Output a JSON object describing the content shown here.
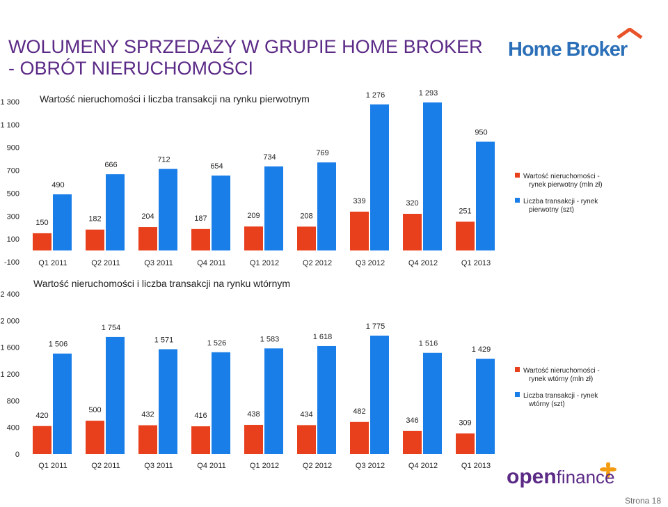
{
  "page": {
    "title_line1": "WOLUMENY SPRZEDAŻY W GRUPIE HOME BROKER",
    "title_line2": "- OBRÓT NIERUCHOMOŚCI",
    "page_number": "Strona 18"
  },
  "logos": {
    "home_broker": "Home Broker",
    "open_finance_open": "open",
    "open_finance_finance": "finance"
  },
  "colors": {
    "title": "#5b2a86",
    "series_red": "#e8401c",
    "series_blue": "#1a7ee8",
    "home_broker_blue": "#2a6fb7",
    "home_broker_orange": "#e8532a",
    "open_finance_purple": "#5b2a86",
    "open_finance_orange": "#f39c12"
  },
  "chart_data": [
    {
      "type": "bar",
      "title": "Wartość nieruchomości i liczba transakcji na rynku pierwotnym",
      "categories": [
        "Q1 2011",
        "Q2 2011",
        "Q3 2011",
        "Q4 2011",
        "Q1 2012",
        "Q2 2012",
        "Q3 2012",
        "Q4 2012",
        "Q1 2013"
      ],
      "y_ticks": [
        "1 300",
        "1 100",
        "900",
        "700",
        "500",
        "300",
        "100",
        "-100"
      ],
      "ylim": [
        -100,
        1300
      ],
      "grid": false,
      "legend_position": "right",
      "series": [
        {
          "name": "Wartość nieruchomości - rynek pierwotny (mln zł)",
          "color": "#e8401c",
          "values": [
            150,
            182,
            204,
            187,
            209,
            208,
            339,
            320,
            251
          ],
          "labels": [
            "150",
            "182",
            "204",
            "187",
            "209",
            "208",
            "339",
            "320",
            "251"
          ]
        },
        {
          "name": "Liczba transakcji - rynek pierwotny (szt)",
          "color": "#1a7ee8",
          "values": [
            490,
            666,
            712,
            654,
            734,
            769,
            1276,
            1293,
            950
          ],
          "labels": [
            "490",
            "666",
            "712",
            "654",
            "734",
            "769",
            "1 276",
            "1 293",
            "950"
          ]
        }
      ]
    },
    {
      "type": "bar",
      "title": "Wartość nieruchomości i liczba transakcji na rynku wtórnym",
      "categories": [
        "Q1 2011",
        "Q2 2011",
        "Q3 2011",
        "Q4 2011",
        "Q1 2012",
        "Q2 2012",
        "Q3 2012",
        "Q4 2012",
        "Q1 2013"
      ],
      "y_ticks": [
        "2 400",
        "2 000",
        "1 600",
        "1 200",
        "800",
        "400",
        "0"
      ],
      "ylim": [
        0,
        2400
      ],
      "grid": false,
      "legend_position": "right",
      "series": [
        {
          "name": "Wartość nieruchomości - rynek wtórny (mln zł)",
          "color": "#e8401c",
          "values": [
            420,
            500,
            432,
            416,
            438,
            434,
            482,
            346,
            309
          ],
          "labels": [
            "420",
            "500",
            "432",
            "416",
            "438",
            "434",
            "482",
            "346",
            "309"
          ]
        },
        {
          "name": "Liczba transakcji - rynek wtórny (szt)",
          "color": "#1a7ee8",
          "values": [
            1506,
            1754,
            1571,
            1526,
            1583,
            1618,
            1775,
            1516,
            1429
          ],
          "labels": [
            "1 506",
            "1 754",
            "1 571",
            "1 526",
            "1 583",
            "1 618",
            "1 775",
            "1 516",
            "1 429"
          ]
        }
      ]
    }
  ]
}
